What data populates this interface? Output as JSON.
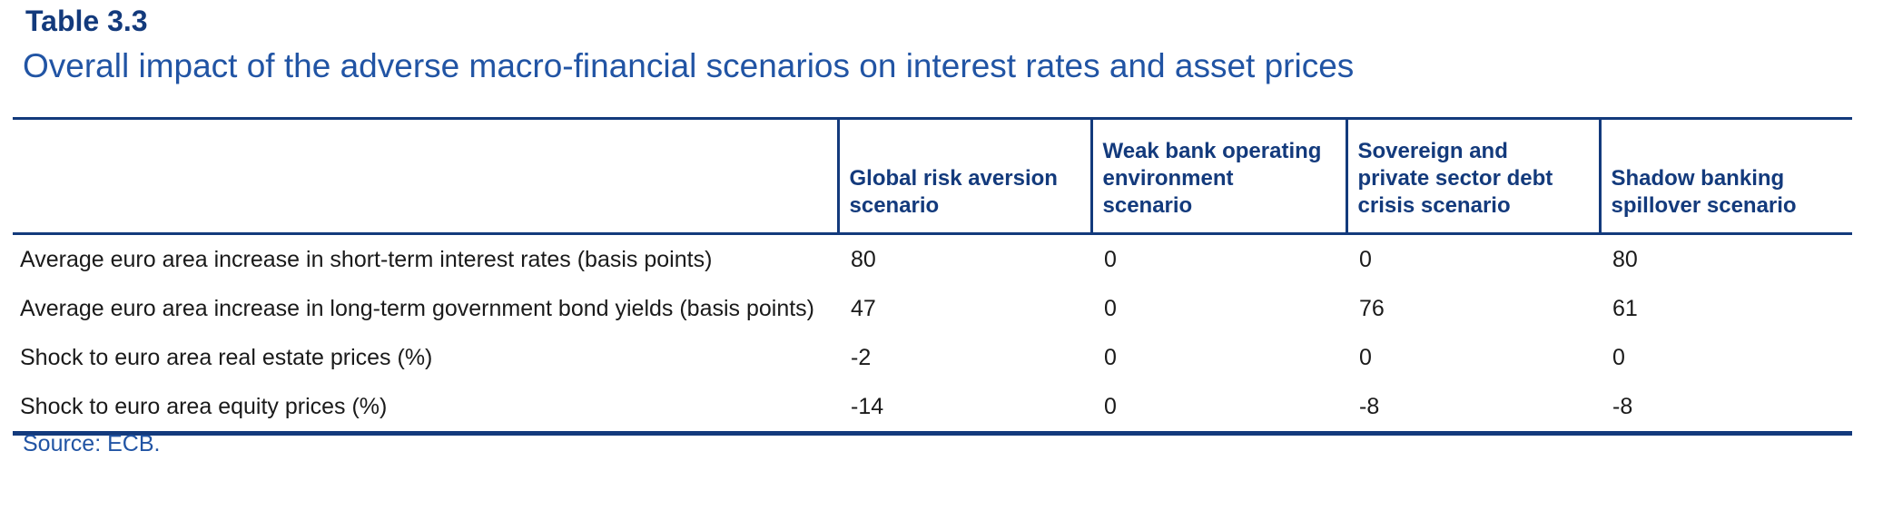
{
  "header": {
    "table_number": "Table 3.3",
    "title": "Overall impact of the adverse macro-financial scenarios on interest rates and asset prices"
  },
  "table": {
    "columns": [
      {
        "label": ""
      },
      {
        "label": "Global risk aversion\nscenario"
      },
      {
        "label": "Weak bank operating\nenvironment\nscenario"
      },
      {
        "label": "Sovereign and\nprivate sector debt\ncrisis scenario"
      },
      {
        "label": "Shadow banking\nspillover scenario"
      }
    ],
    "rows": [
      {
        "label": "Average euro area increase in short-term interest rates (basis points)",
        "values": [
          "80",
          "0",
          "0",
          "80"
        ]
      },
      {
        "label": "Average euro area increase in long-term government bond yields (basis points)",
        "values": [
          "47",
          "0",
          "76",
          "61"
        ]
      },
      {
        "label": "Shock to euro area real estate prices (%)",
        "values": [
          "-2",
          "0",
          "0",
          "0"
        ]
      },
      {
        "label": "Shock to euro area equity prices (%)",
        "values": [
          "-14",
          "0",
          "-8",
          "-8"
        ]
      }
    ]
  },
  "footer": {
    "source": "Source: ECB."
  },
  "colors": {
    "navy": "#133a7c",
    "blue": "#2154a4"
  }
}
